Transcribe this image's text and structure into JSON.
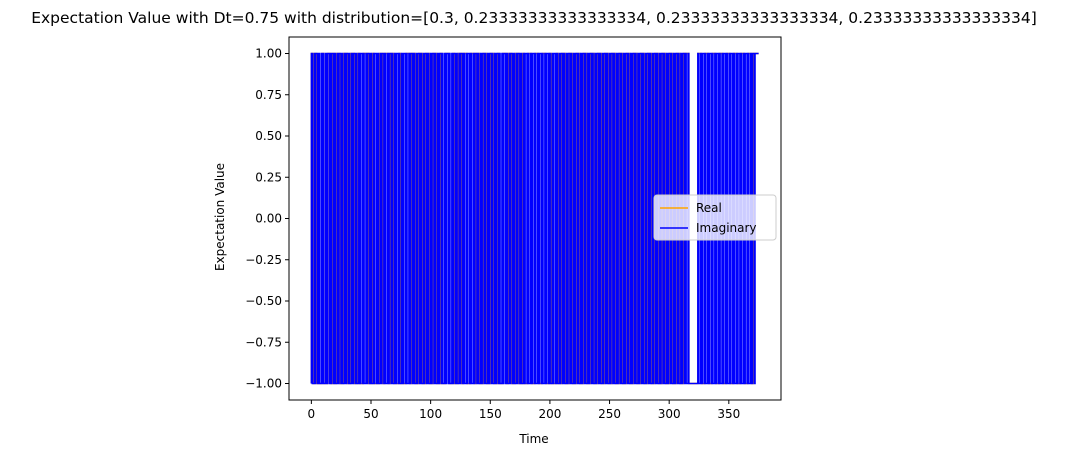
{
  "chart_data": {
    "type": "line",
    "title": "Expectation Value with Dt=0.75 with distribution=[0.3, 0.23333333333333334, 0.23333333333333334, 0.23333333333333334]",
    "xlabel": "Time",
    "ylabel": "Expectation Value",
    "xlim": [
      -18.75,
      393.75
    ],
    "ylim": [
      -1.1,
      1.1
    ],
    "xticks": [
      0,
      50,
      100,
      150,
      200,
      250,
      300,
      350
    ],
    "xtick_labels": [
      "0",
      "50",
      "100",
      "150",
      "200",
      "250",
      "300",
      "350"
    ],
    "yticks": [
      1.0,
      0.75,
      0.5,
      0.25,
      0.0,
      -0.25,
      -0.5,
      -0.75,
      -1.0
    ],
    "ytick_labels": [
      "1.00",
      "0.75",
      "0.50",
      "0.25",
      "0.00",
      "−0.25",
      "−0.50",
      "−0.75",
      "−1.00"
    ],
    "grid": false,
    "legend_position": "center-right",
    "x_range": [
      0,
      375
    ],
    "dt": 0.75,
    "series": [
      {
        "name": "Real",
        "color": "#ffa500",
        "values_description": "piecewise-constant values switching between -1 and 1",
        "toggle_times": [
          1.5,
          3,
          4.5,
          9,
          10.5,
          13.5,
          16.5,
          18,
          19.5,
          21,
          24,
          27,
          30,
          33,
          36,
          39,
          40.5,
          43.5,
          48,
          51,
          52.5,
          57,
          60,
          61.5,
          64.5,
          66,
          69,
          73.5,
          75,
          79.5,
          82.5,
          84,
          87,
          90,
          93,
          96,
          99,
          102,
          105,
          108,
          109.5,
          112.5,
          115.5,
          118.5,
          120,
          123,
          126,
          127.5,
          130.5,
          133.5,
          136.5,
          138,
          141,
          144,
          147,
          150,
          153,
          156,
          157.5,
          160.5,
          163.5,
          165,
          168,
          171,
          174,
          177,
          178.5,
          181.5,
          184.5,
          187.5,
          190.5,
          193.5,
          196.5,
          199.5,
          201,
          205.5,
          207,
          210,
          213,
          216,
          219,
          222,
          225,
          228,
          231,
          234,
          237,
          240,
          243,
          246,
          249,
          252,
          255,
          258,
          261,
          264,
          267,
          270,
          273,
          276,
          279,
          282,
          285,
          288,
          291,
          294,
          297,
          300,
          303,
          306,
          309,
          312,
          316.5,
          324,
          327,
          330,
          333,
          336,
          339,
          342,
          345,
          348,
          351,
          354,
          357,
          360,
          363,
          366,
          369,
          370.5
        ]
      },
      {
        "name": "Imaginary",
        "color": "#0000ff",
        "values_description": "piecewise-constant values switching between -1 and 1",
        "toggle_times": [
          0.75,
          2.25,
          3,
          3.75,
          5.25,
          6,
          6.75,
          8.25,
          9,
          9.75,
          10.5,
          12,
          12.75,
          13.5,
          15,
          15.75,
          16.5,
          17.25,
          18.75,
          19.5,
          20.25,
          21.75,
          22.5,
          23.25,
          24.75,
          25.5,
          26.25,
          27.75,
          28.5,
          29.25,
          30.75,
          31.5,
          32.25,
          33.75,
          34.5,
          35.25,
          36.75,
          37.5,
          38.25,
          39.75,
          40.5,
          41.25,
          42.75,
          43.5,
          44.25,
          45.75,
          46.5,
          47.25,
          48.75,
          49.5,
          50.25,
          51.75,
          52.5,
          53.25,
          54.75,
          55.5,
          56.25,
          57.75,
          58.5,
          59.25,
          60.75,
          61.5,
          62.25,
          63.75,
          64.5,
          65.25,
          66.75,
          67.5,
          68.25,
          69.75,
          70.5,
          71.25,
          72.75,
          73.5,
          74.25,
          75.75,
          76.5,
          77.25,
          78.75,
          79.5,
          80.25,
          81.75,
          82.5,
          83.25,
          84.75,
          85.5,
          86.25,
          87.75,
          88.5,
          89.25,
          90.75,
          91.5,
          92.25,
          93.75,
          94.5,
          95.25,
          96.75,
          97.5,
          98.25,
          99.75,
          100.5,
          101.25,
          102.75,
          103.5,
          104.25,
          105.75,
          106.5,
          107.25,
          108.75,
          109.5,
          110.25,
          111.75,
          112.5,
          113.25,
          114.75,
          115.5,
          116.25,
          117.75,
          118.5,
          119.25,
          120.75,
          121.5,
          122.25,
          123.75,
          124.5,
          125.25,
          126.75,
          127.5,
          128.25,
          129.75,
          130.5,
          131.25,
          132.75,
          133.5,
          134.25,
          135.75,
          136.5,
          137.25,
          138.75,
          139.5,
          140.25,
          141.75,
          142.5,
          143.25,
          144.75,
          145.5,
          146.25,
          147.75,
          148.5,
          149.25,
          150.75,
          151.5,
          152.25,
          153.75,
          154.5,
          155.25,
          156.75,
          157.5,
          158.25,
          159.75,
          160.5,
          161.25,
          162.75,
          163.5,
          164.25,
          165.75,
          166.5,
          167.25,
          168.75,
          169.5,
          170.25,
          171.75,
          172.5,
          173.25,
          174.75,
          175.5,
          176.25,
          177.75,
          178.5,
          179.25,
          180.75,
          181.5,
          182.25,
          183.75,
          184.5,
          185.25,
          186.75,
          187.5,
          188.25,
          189.75,
          190.5,
          191.25,
          192.75,
          193.5,
          194.25,
          195.75,
          196.5,
          197.25,
          198.75,
          199.5,
          200.25,
          201.75,
          202.5,
          203.25,
          204.75,
          205.5,
          206.25,
          207.75,
          208.5,
          209.25,
          210.75,
          211.5,
          212.25,
          213.75,
          214.5,
          215.25,
          216.75,
          217.5,
          218.25,
          219.75,
          220.5,
          221.25,
          222.75,
          223.5,
          224.25,
          225.75,
          226.5,
          227.25,
          228.75,
          229.5,
          230.25,
          231.75,
          232.5,
          233.25,
          234.75,
          235.5,
          236.25,
          237.75,
          238.5,
          239.25,
          240.75,
          241.5,
          242.25,
          243.75,
          244.5,
          245.25,
          246.75,
          247.5,
          248.25,
          249.75,
          250.5,
          251.25,
          252.75,
          253.5,
          254.25,
          255.75,
          256.5,
          257.25,
          258.75,
          259.5,
          260.25,
          261.75,
          262.5,
          263.25,
          264.75,
          265.5,
          266.25,
          267.75,
          268.5,
          269.25,
          270.75,
          271.5,
          272.25,
          273.75,
          274.5,
          275.25,
          276.75,
          277.5,
          278.25,
          279.75,
          280.5,
          281.25,
          282.75,
          283.5,
          284.25,
          285.75,
          286.5,
          287.25,
          288.75,
          289.5,
          290.25,
          291.75,
          292.5,
          293.25,
          294.75,
          295.5,
          296.25,
          297.75,
          298.5,
          299.25,
          300.75,
          301.5,
          302.25,
          303.75,
          304.5,
          305.25,
          306.75,
          307.5,
          308.25,
          309.75,
          310.5,
          311.25,
          312.75,
          313.5,
          314.25,
          315.75,
          316.5,
          324,
          324.75,
          326.25,
          327,
          327.75,
          329.25,
          330,
          330.75,
          332.25,
          333,
          333.75,
          335.25,
          336,
          336.75,
          338.25,
          339,
          339.75,
          341.25,
          342,
          342.75,
          344.25,
          345,
          345.75,
          347.25,
          348,
          348.75,
          350.25,
          351,
          351.75,
          353.25,
          354,
          354.75,
          356.25,
          357,
          357.75,
          359.25,
          360,
          360.75,
          362.25,
          363,
          363.75,
          365.25,
          366,
          366.75,
          368.25,
          369,
          369.75,
          371.25,
          372
        ]
      }
    ]
  }
}
